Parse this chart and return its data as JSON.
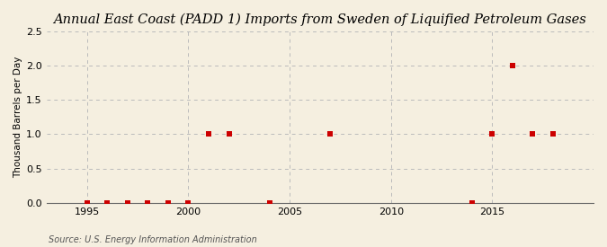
{
  "title": "Annual East Coast (PADD 1) Imports from Sweden of Liquified Petroleum Gases",
  "ylabel": "Thousand Barrels per Day",
  "source": "Source: U.S. Energy Information Administration",
  "background_color": "#f5efe0",
  "plot_background_color": "#f5efe0",
  "xlim": [
    1993,
    2020
  ],
  "ylim": [
    0,
    2.5
  ],
  "yticks": [
    0.0,
    0.5,
    1.0,
    1.5,
    2.0,
    2.5
  ],
  "xticks": [
    1995,
    2000,
    2005,
    2010,
    2015
  ],
  "data_x": [
    1995,
    1996,
    1997,
    1998,
    1999,
    2000,
    2001,
    2002,
    2004,
    2007,
    2014,
    2015,
    2016,
    2017,
    2018
  ],
  "data_y": [
    0,
    0,
    0,
    0,
    0,
    0,
    1.0,
    1.0,
    0,
    1.0,
    0,
    1.0,
    2.0,
    1.0,
    1.0
  ],
  "marker_color": "#cc0000",
  "marker_size": 5,
  "grid_color": "#bbbbbb",
  "title_fontsize": 10.5,
  "ylabel_fontsize": 7.5,
  "source_fontsize": 7,
  "tick_fontsize": 8
}
